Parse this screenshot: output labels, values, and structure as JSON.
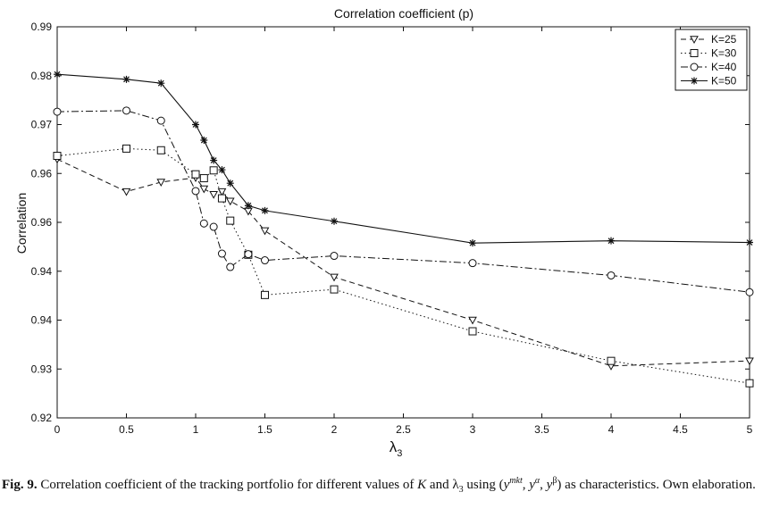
{
  "chart_data": {
    "type": "line",
    "title": "Correlation coefficient (p)",
    "xlabel": "λ3",
    "ylabel": "Correlation",
    "xlim": [
      0,
      5
    ],
    "ylim": [
      0.92,
      0.99
    ],
    "x_ticks": [
      "0",
      "0.5",
      "1",
      "1.5",
      "2",
      "2.5",
      "3",
      "3.5",
      "4",
      "4.5",
      "5"
    ],
    "y_ticks": [
      "0.92",
      "0.93",
      "0.94",
      "0.94",
      "0.96",
      "0.96",
      "0.97",
      "0.98",
      "0.99"
    ],
    "grid": false,
    "legend_position": "top-right",
    "series": [
      {
        "name": "K=25",
        "marker": "triangle-down",
        "line_style": "dashed",
        "x": [
          0,
          0.5,
          0.75,
          1,
          1.06,
          1.13,
          1.19,
          1.25,
          1.38,
          1.5,
          2,
          3,
          4,
          5
        ],
        "y": [
          0.9663,
          0.9605,
          0.9622,
          0.963,
          0.961,
          0.96,
          0.9605,
          0.9588,
          0.957,
          0.9535,
          0.9452,
          0.9375,
          0.9293,
          0.9302
        ]
      },
      {
        "name": "K=30",
        "marker": "square",
        "line_style": "dotted",
        "x": [
          0,
          0.5,
          0.75,
          1,
          1.06,
          1.13,
          1.19,
          1.25,
          1.38,
          1.5,
          2,
          3,
          4,
          5
        ],
        "y": [
          0.9669,
          0.9682,
          0.9679,
          0.9636,
          0.9629,
          0.9643,
          0.9593,
          0.9553,
          0.9492,
          0.942,
          0.943,
          0.9355,
          0.9302,
          0.9262
        ]
      },
      {
        "name": "K=40",
        "marker": "circle",
        "line_style": "dashdot",
        "x": [
          0,
          0.5,
          0.75,
          1,
          1.06,
          1.13,
          1.19,
          1.25,
          1.38,
          1.5,
          2,
          3,
          4,
          5
        ],
        "y": [
          0.9748,
          0.975,
          0.9732,
          0.9606,
          0.9548,
          0.9542,
          0.9494,
          0.947,
          0.9493,
          0.9482,
          0.949,
          0.9477,
          0.9455,
          0.9425
        ]
      },
      {
        "name": "K=50",
        "marker": "star",
        "line_style": "solid",
        "x": [
          0,
          0.5,
          0.75,
          1,
          1.06,
          1.13,
          1.19,
          1.25,
          1.38,
          1.5,
          2,
          3,
          4,
          5
        ],
        "y": [
          0.9815,
          0.9806,
          0.9799,
          0.9725,
          0.9697,
          0.9661,
          0.9644,
          0.962,
          0.958,
          0.9571,
          0.9552,
          0.9513,
          0.9517,
          0.9514
        ]
      }
    ]
  },
  "caption": {
    "fig_label": "Fig. 9.",
    "text_1": " Correlation coefficient of the tracking portfolio for different values of ",
    "k_symbol": "K",
    "text_2": " and ",
    "lambda_symbol": "λ",
    "lambda_sub": "3",
    "text_3": " using (",
    "y1_base": "y",
    "y1_sup": "mkt",
    "comma_1": ", ",
    "y2_base": "y",
    "y2_sup": "α",
    "comma_2": ", ",
    "y3_base": "y",
    "y3_sup": "β",
    "text_4": ") as characteristics. Own elaboration."
  }
}
